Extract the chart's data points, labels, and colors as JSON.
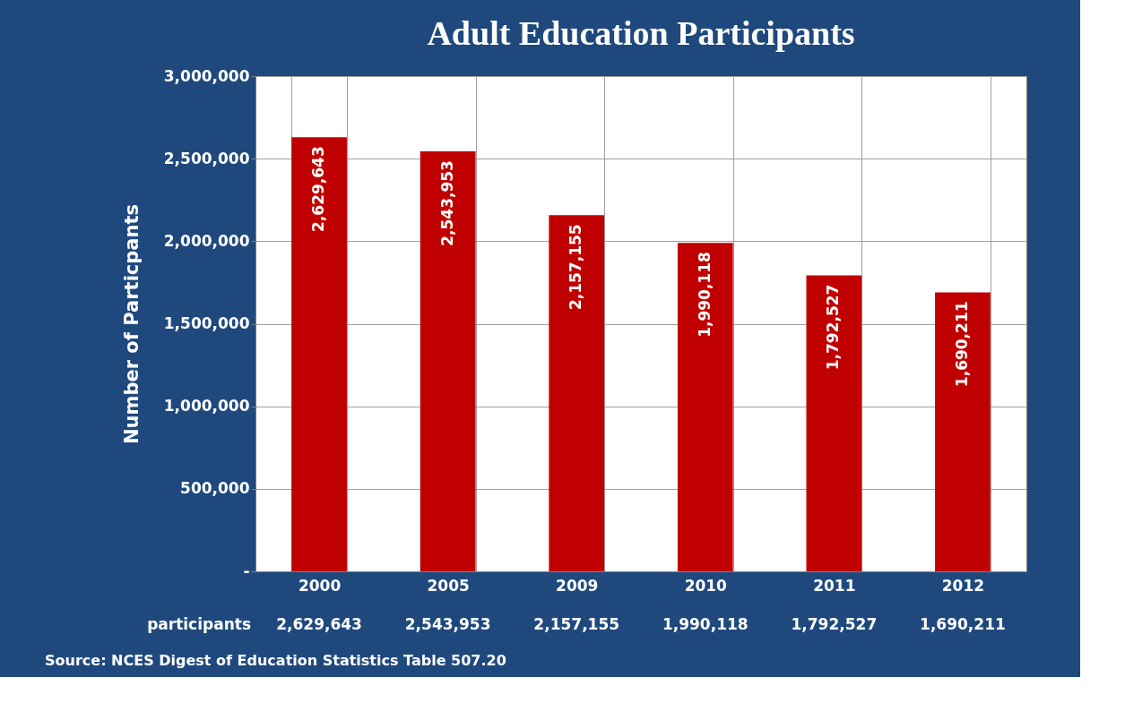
{
  "chart_data": {
    "type": "bar",
    "title": "Adult Education Participants",
    "ylabel": "Number of Particpants",
    "categories": [
      "2000",
      "2005",
      "2009",
      "2010",
      "2011",
      "2012"
    ],
    "series": [
      {
        "name": "participants",
        "color": "#c00000",
        "values": [
          2629643,
          2543953,
          2157155,
          1990118,
          1792527,
          1690211
        ],
        "value_labels": [
          "2,629,643",
          "2,543,953",
          "2,157,155",
          "1,990,118",
          "1,792,527",
          "1,690,211"
        ]
      }
    ],
    "ylim": [
      0,
      3000000
    ],
    "yticks": [
      {
        "value": 0,
        "label": "-"
      },
      {
        "value": 500000,
        "label": "500,000"
      },
      {
        "value": 1000000,
        "label": "1,000,000"
      },
      {
        "value": 1500000,
        "label": "1,500,000"
      },
      {
        "value": 2000000,
        "label": "2,000,000"
      },
      {
        "value": 2500000,
        "label": "2,500,000"
      },
      {
        "value": 3000000,
        "label": "3,000,000"
      }
    ],
    "grid": true,
    "annotations": [
      "Source: NCES Digest of Education Statistics Table 507.20"
    ]
  }
}
